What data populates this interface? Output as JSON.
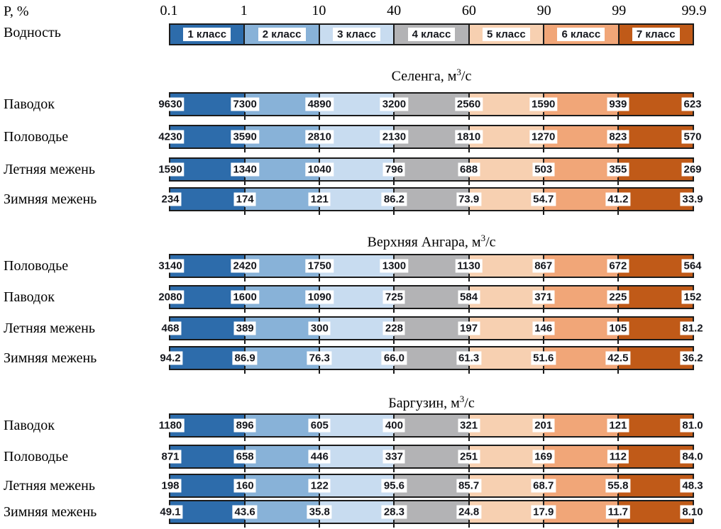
{
  "chart_data": {
    "type": "table",
    "x_axis": {
      "label": "P, %",
      "ticks": [
        "0.1",
        "1",
        "10",
        "40",
        "60",
        "90",
        "99",
        "99.9"
      ]
    },
    "legend": {
      "title": "Водность",
      "classes": [
        {
          "label": "1 класс",
          "color": "#2d6cab"
        },
        {
          "label": "2 класс",
          "color": "#88b2d8"
        },
        {
          "label": "3 класс",
          "color": "#c8dcf0"
        },
        {
          "label": "4 класс",
          "color": "#b3b3b5"
        },
        {
          "label": "5 класс",
          "color": "#f7d0b1"
        },
        {
          "label": "6 класс",
          "color": "#f1a678"
        },
        {
          "label": "7 класс",
          "color": "#c05a18"
        }
      ]
    },
    "unit": {
      "prefix": ", м",
      "sup": "3",
      "suffix": "/с"
    },
    "sections": [
      {
        "river": "Селенга",
        "rows": [
          {
            "label": "Паводок",
            "values": [
              "9630",
              "7300",
              "4890",
              "3200",
              "2560",
              "1590",
              "939",
              "623"
            ]
          },
          {
            "label": "Половодье",
            "values": [
              "4230",
              "3590",
              "2810",
              "2130",
              "1810",
              "1270",
              "823",
              "570"
            ]
          },
          {
            "label": "Летняя межень",
            "values": [
              "1590",
              "1340",
              "1040",
              "796",
              "688",
              "503",
              "355",
              "269"
            ]
          },
          {
            "label": "Зимняя межень",
            "values": [
              "234",
              "174",
              "121",
              "86.2",
              "73.9",
              "54.7",
              "41.2",
              "33.9"
            ]
          }
        ]
      },
      {
        "river": "Верхняя Ангара",
        "rows": [
          {
            "label": "Половодье",
            "values": [
              "3140",
              "2420",
              "1750",
              "1300",
              "1130",
              "867",
              "672",
              "564"
            ]
          },
          {
            "label": "Паводок",
            "values": [
              "2080",
              "1600",
              "1090",
              "725",
              "584",
              "371",
              "225",
              "152"
            ]
          },
          {
            "label": "Летняя межень",
            "values": [
              "468",
              "389",
              "300",
              "228",
              "197",
              "146",
              "105",
              "81.2"
            ]
          },
          {
            "label": "Зимняя межень",
            "values": [
              "94.2",
              "86.9",
              "76.3",
              "66.0",
              "61.3",
              "51.6",
              "42.5",
              "36.2"
            ]
          }
        ]
      },
      {
        "river": "Баргузин",
        "rows": [
          {
            "label": "Паводок",
            "values": [
              "1180",
              "896",
              "605",
              "400",
              "321",
              "201",
              "121",
              "81.0"
            ]
          },
          {
            "label": "Половодье",
            "values": [
              "871",
              "658",
              "446",
              "337",
              "251",
              "169",
              "112",
              "84.0"
            ]
          },
          {
            "label": "Летняя межень",
            "values": [
              "198",
              "160",
              "122",
              "95.6",
              "85.7",
              "68.7",
              "55.8",
              "48.3"
            ]
          },
          {
            "label": "Зимняя межень",
            "values": [
              "49.1",
              "43.6",
              "35.8",
              "28.3",
              "24.8",
              "17.9",
              "11.7",
              "8.10"
            ]
          }
        ]
      }
    ]
  }
}
